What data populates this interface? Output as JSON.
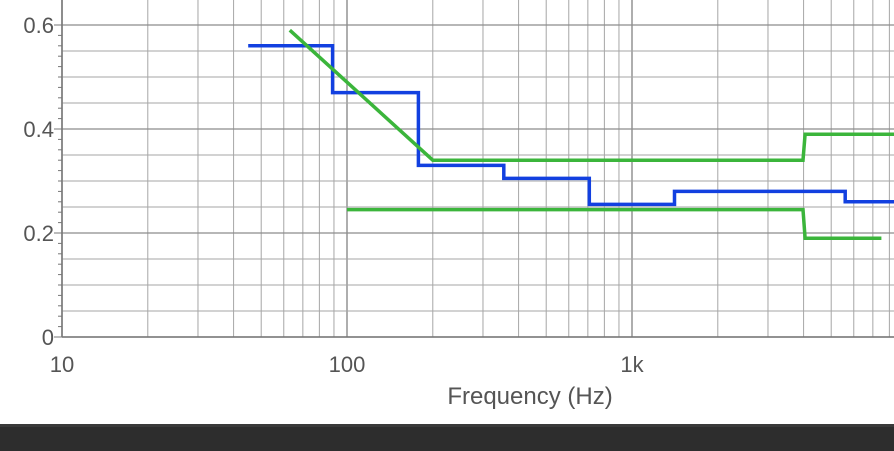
{
  "chart_data": {
    "type": "line",
    "title": "",
    "xlabel": "Frequency (Hz)",
    "ylabel": "",
    "x_scale": "log",
    "xlim": [
      10,
      9000
    ],
    "ylim": [
      0,
      0.63
    ],
    "grid": true,
    "x_ticks": [
      {
        "value": 10,
        "label": "10"
      },
      {
        "value": 100,
        "label": "100"
      },
      {
        "value": 1000,
        "label": "1k"
      }
    ],
    "y_ticks": [
      {
        "value": 0,
        "label": "0"
      },
      {
        "value": 0.2,
        "label": "0.2"
      },
      {
        "value": 0.4,
        "label": "0.4"
      },
      {
        "value": 0.6,
        "label": "0.6"
      }
    ],
    "series": [
      {
        "color": "#1240e0",
        "step": true,
        "points": [
          [
            45,
            0.56
          ],
          [
            89,
            0.56
          ],
          [
            89,
            0.47
          ],
          [
            178,
            0.47
          ],
          [
            178,
            0.33
          ],
          [
            355,
            0.33
          ],
          [
            355,
            0.305
          ],
          [
            708,
            0.305
          ],
          [
            708,
            0.255
          ],
          [
            1410,
            0.255
          ],
          [
            1410,
            0.28
          ],
          [
            5600,
            0.28
          ],
          [
            5600,
            0.26
          ],
          [
            9000,
            0.26
          ]
        ]
      },
      {
        "color": "#3bb53b",
        "step": false,
        "points": [
          [
            63,
            0.59
          ],
          [
            200,
            0.34
          ],
          [
            3980,
            0.34
          ],
          [
            4050,
            0.39
          ],
          [
            9000,
            0.39
          ]
        ]
      },
      {
        "color": "#3bb53b",
        "step": false,
        "points": [
          [
            100,
            0.245
          ],
          [
            3980,
            0.245
          ],
          [
            4050,
            0.19
          ],
          [
            7500,
            0.19
          ]
        ]
      }
    ]
  }
}
